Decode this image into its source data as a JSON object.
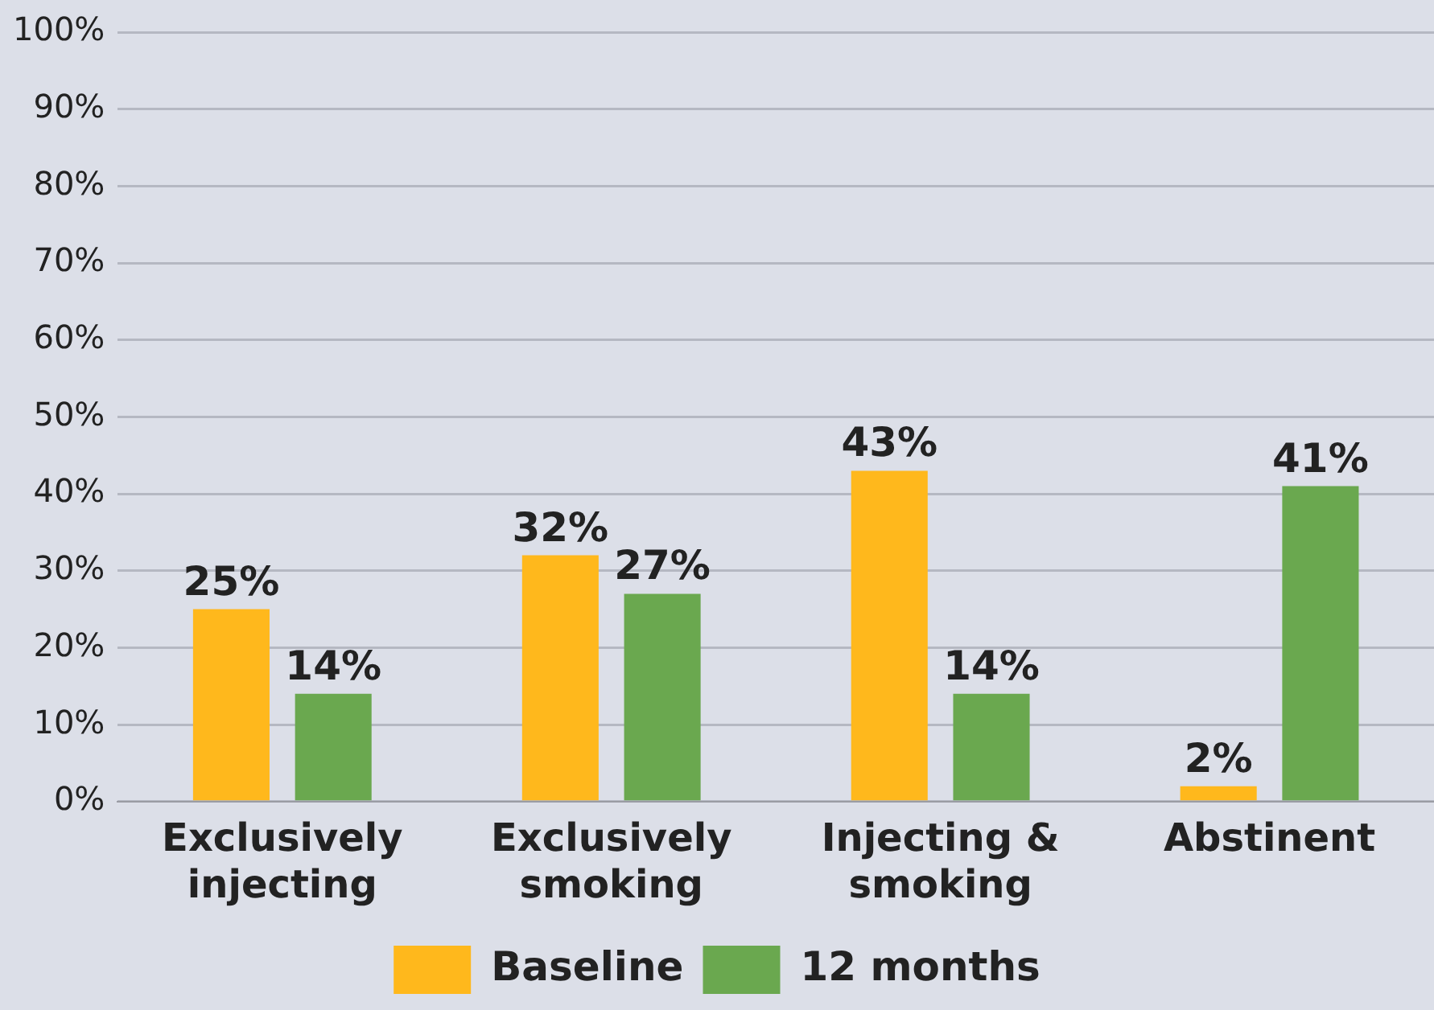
{
  "chart_data": {
    "type": "bar",
    "categories": [
      "Exclusively injecting",
      "Exclusively smoking",
      "Injecting & smoking",
      "Abstinent"
    ],
    "series": [
      {
        "name": "Baseline",
        "color": "#ffb81c",
        "values": [
          25,
          32,
          43,
          2
        ],
        "value_labels": [
          "25%",
          "32%",
          "43%",
          "2%"
        ]
      },
      {
        "name": "12 months",
        "color": "#6aa84f",
        "values": [
          14,
          27,
          14,
          41
        ],
        "value_labels": [
          "14%",
          "27%",
          "14%",
          "41%"
        ]
      }
    ],
    "ylim": [
      0,
      100
    ],
    "yticks": [
      {
        "value": 0,
        "label": "0%"
      },
      {
        "value": 10,
        "label": "10%"
      },
      {
        "value": 20,
        "label": "20%"
      },
      {
        "value": 30,
        "label": "30%"
      },
      {
        "value": 40,
        "label": "40%"
      },
      {
        "value": 50,
        "label": "50%"
      },
      {
        "value": 60,
        "label": "60%"
      },
      {
        "value": 70,
        "label": "70%"
      },
      {
        "value": 80,
        "label": "80%"
      },
      {
        "value": 90,
        "label": "90%"
      },
      {
        "value": 100,
        "label": "100%"
      }
    ],
    "grid": "y",
    "legend": "bottom"
  }
}
